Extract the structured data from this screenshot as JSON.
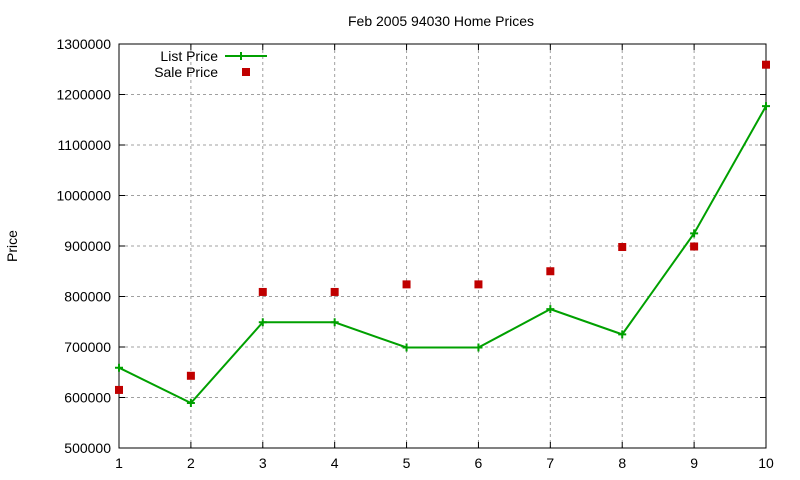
{
  "chart_data": {
    "type": "line",
    "title": "Feb 2005 94030 Home Prices",
    "xlabel": "",
    "ylabel": "Price",
    "x": [
      1,
      2,
      3,
      4,
      5,
      6,
      7,
      8,
      9,
      10
    ],
    "xlim": [
      1,
      10
    ],
    "ylim": [
      500000,
      1300000
    ],
    "xticks": [
      "1",
      "2",
      "3",
      "4",
      "5",
      "6",
      "7",
      "8",
      "9",
      "10"
    ],
    "yticks": [
      "500000",
      "600000",
      "700000",
      "800000",
      "900000",
      "1000000",
      "1100000",
      "1200000",
      "1300000"
    ],
    "grid": true,
    "legend_position": "top-left",
    "series": [
      {
        "name": "List Price",
        "style": "linespoints",
        "color": "#00a000",
        "marker": "plus",
        "values": [
          659000,
          589000,
          749000,
          749000,
          699000,
          699000,
          775000,
          725000,
          925000,
          1177000
        ]
      },
      {
        "name": "Sale Price",
        "style": "points",
        "color": "#c00000",
        "marker": "square",
        "values": [
          615000,
          643000,
          809000,
          809000,
          824000,
          824000,
          850000,
          898000,
          899000,
          1259000
        ]
      }
    ]
  }
}
